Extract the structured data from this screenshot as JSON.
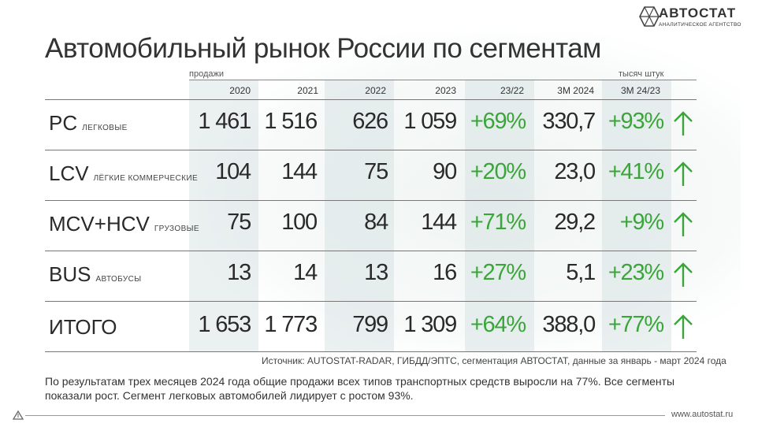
{
  "brand": {
    "name": "АВТОСТАТ",
    "tagline": "АНАЛИТИЧЕСКОЕ АГЕНТСТВО"
  },
  "title": "Автомобильный рынок России по сегментам",
  "units": {
    "left": "продажи",
    "right": "тысяч штук"
  },
  "headers": [
    "2020",
    "2021",
    "2022",
    "2023",
    "23/22",
    "3M 2024",
    "3M 24/23"
  ],
  "rows": [
    {
      "code": "PC",
      "desc": "легковые",
      "v2020": "1 461",
      "v2021": "1 516",
      "v2022": "626",
      "v2023": "1 059",
      "ch2322": "+69%",
      "m3_2024": "330,7",
      "m3_ch": "+93%",
      "arrow": "up-arrow-icon"
    },
    {
      "code": "LCV",
      "desc": "лёгкие коммерческие",
      "v2020": "104",
      "v2021": "144",
      "v2022": "75",
      "v2023": "90",
      "ch2322": "+20%",
      "m3_2024": "23,0",
      "m3_ch": "+41%",
      "arrow": "up-arrow-icon"
    },
    {
      "code": "MCV+HCV",
      "desc": "грузовые",
      "v2020": "75",
      "v2021": "100",
      "v2022": "84",
      "v2023": "144",
      "ch2322": "+71%",
      "m3_2024": "29,2",
      "m3_ch": "+9%",
      "arrow": "up-arrow-icon"
    },
    {
      "code": "BUS",
      "desc": "автобусы",
      "v2020": "13",
      "v2021": "14",
      "v2022": "13",
      "v2023": "16",
      "ch2322": "+27%",
      "m3_2024": "5,1",
      "m3_ch": "+23%",
      "arrow": "up-arrow-icon"
    },
    {
      "code": "ИТОГО",
      "desc": "",
      "v2020": "1 653",
      "v2021": "1 773",
      "v2022": "799",
      "v2023": "1 309",
      "ch2322": "+64%",
      "m3_2024": "388,0",
      "m3_ch": "+77%",
      "arrow": "up-arrow-icon"
    }
  ],
  "colors": {
    "growth": "#3aa63a",
    "text": "#2a2a2a"
  },
  "source": "Источник: AUTOSTAT-RADAR, ГИБДД/ЭПТС, сегментация АВТОСТАТ, данные за январь - март 2024 года",
  "summary": "По результатам трех месяцев 2024 года общие продажи всех типов транспортных средств выросли на 77%. Все сегменты показали рост. Сегмент легковых автомобилей лидирует с ростом 93%.",
  "footer_url": "www.autostat.ru"
}
